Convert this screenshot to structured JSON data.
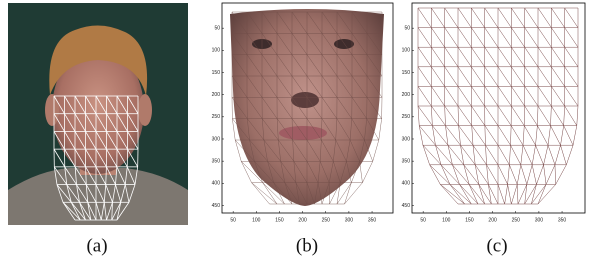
{
  "panels": [
    {
      "label": "(a)"
    },
    {
      "label": "(b)",
      "xticks": [
        50,
        100,
        150,
        200,
        250,
        300,
        350
      ],
      "yticks": [
        50,
        100,
        150,
        200,
        250,
        300,
        350,
        400,
        450
      ]
    },
    {
      "label": "(c)",
      "xticks": [
        50,
        100,
        150,
        200,
        250,
        300,
        350
      ],
      "yticks": [
        50,
        100,
        150,
        200,
        250,
        300,
        350,
        400,
        450
      ]
    }
  ]
}
